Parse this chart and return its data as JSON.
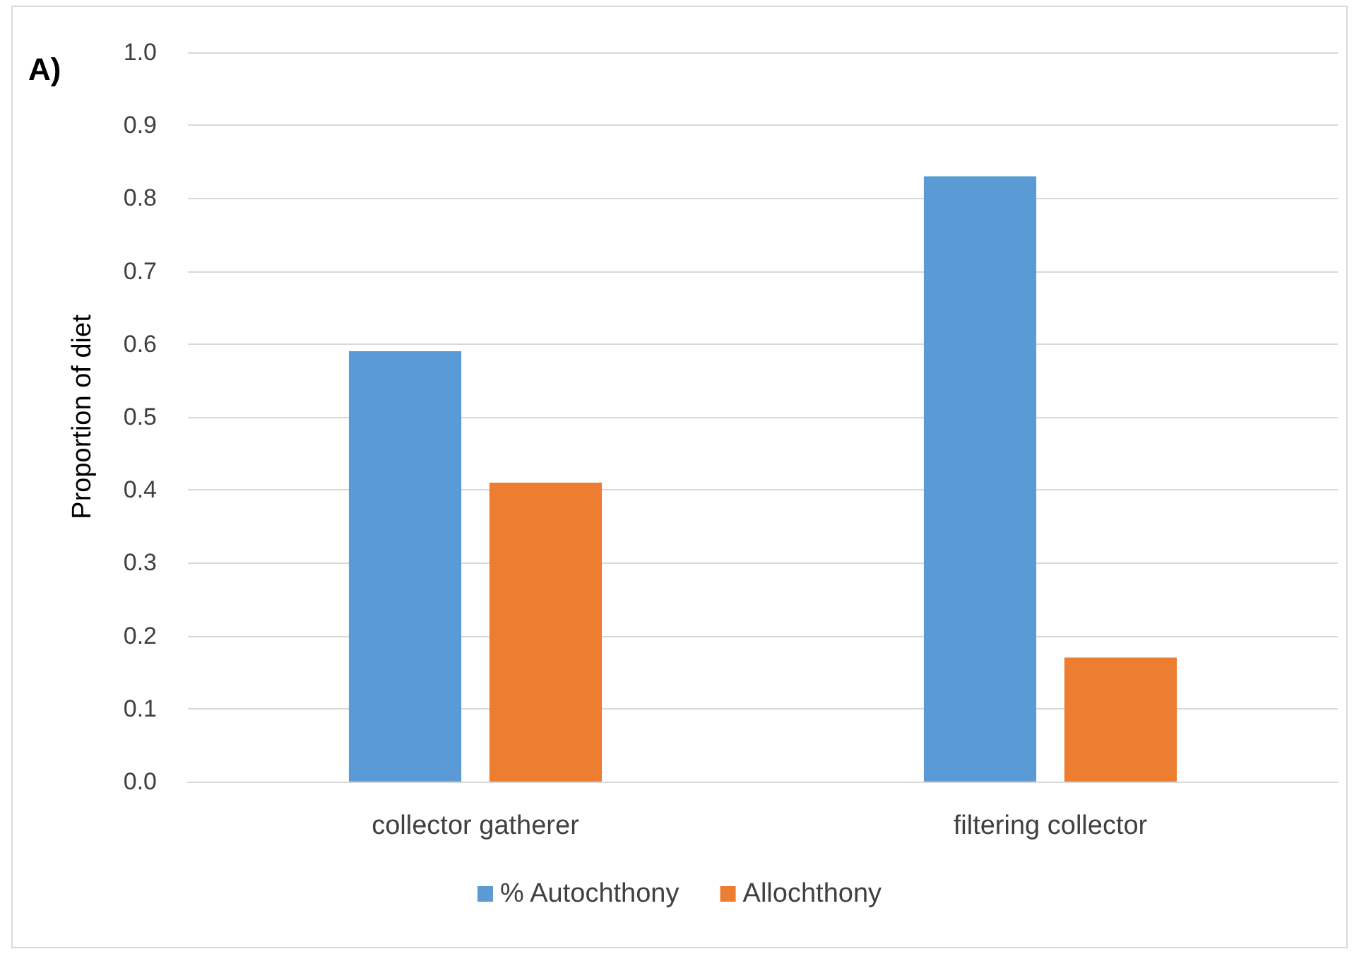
{
  "chart_data": {
    "type": "bar",
    "ylabel": "Proportion of diet",
    "annotations": [
      "A)"
    ],
    "categories": [
      "collector gatherer",
      "filtering collector"
    ],
    "series": [
      {
        "name": "% Autochthony",
        "color": "#5b9bd5",
        "values": [
          0.59,
          0.83
        ]
      },
      {
        "name": "Allochthony",
        "color": "#ed7d31",
        "values": [
          0.41,
          0.17
        ]
      }
    ],
    "ylim": [
      0,
      1
    ],
    "yticks": [
      {
        "value": 0,
        "label": "0.0"
      },
      0.1,
      0.2,
      0.3,
      0.4,
      0.5,
      0.6,
      0.7,
      0.8,
      0.9,
      {
        "value": 1,
        "label": "1.0"
      }
    ],
    "grid": "y",
    "legend": "bottom"
  }
}
